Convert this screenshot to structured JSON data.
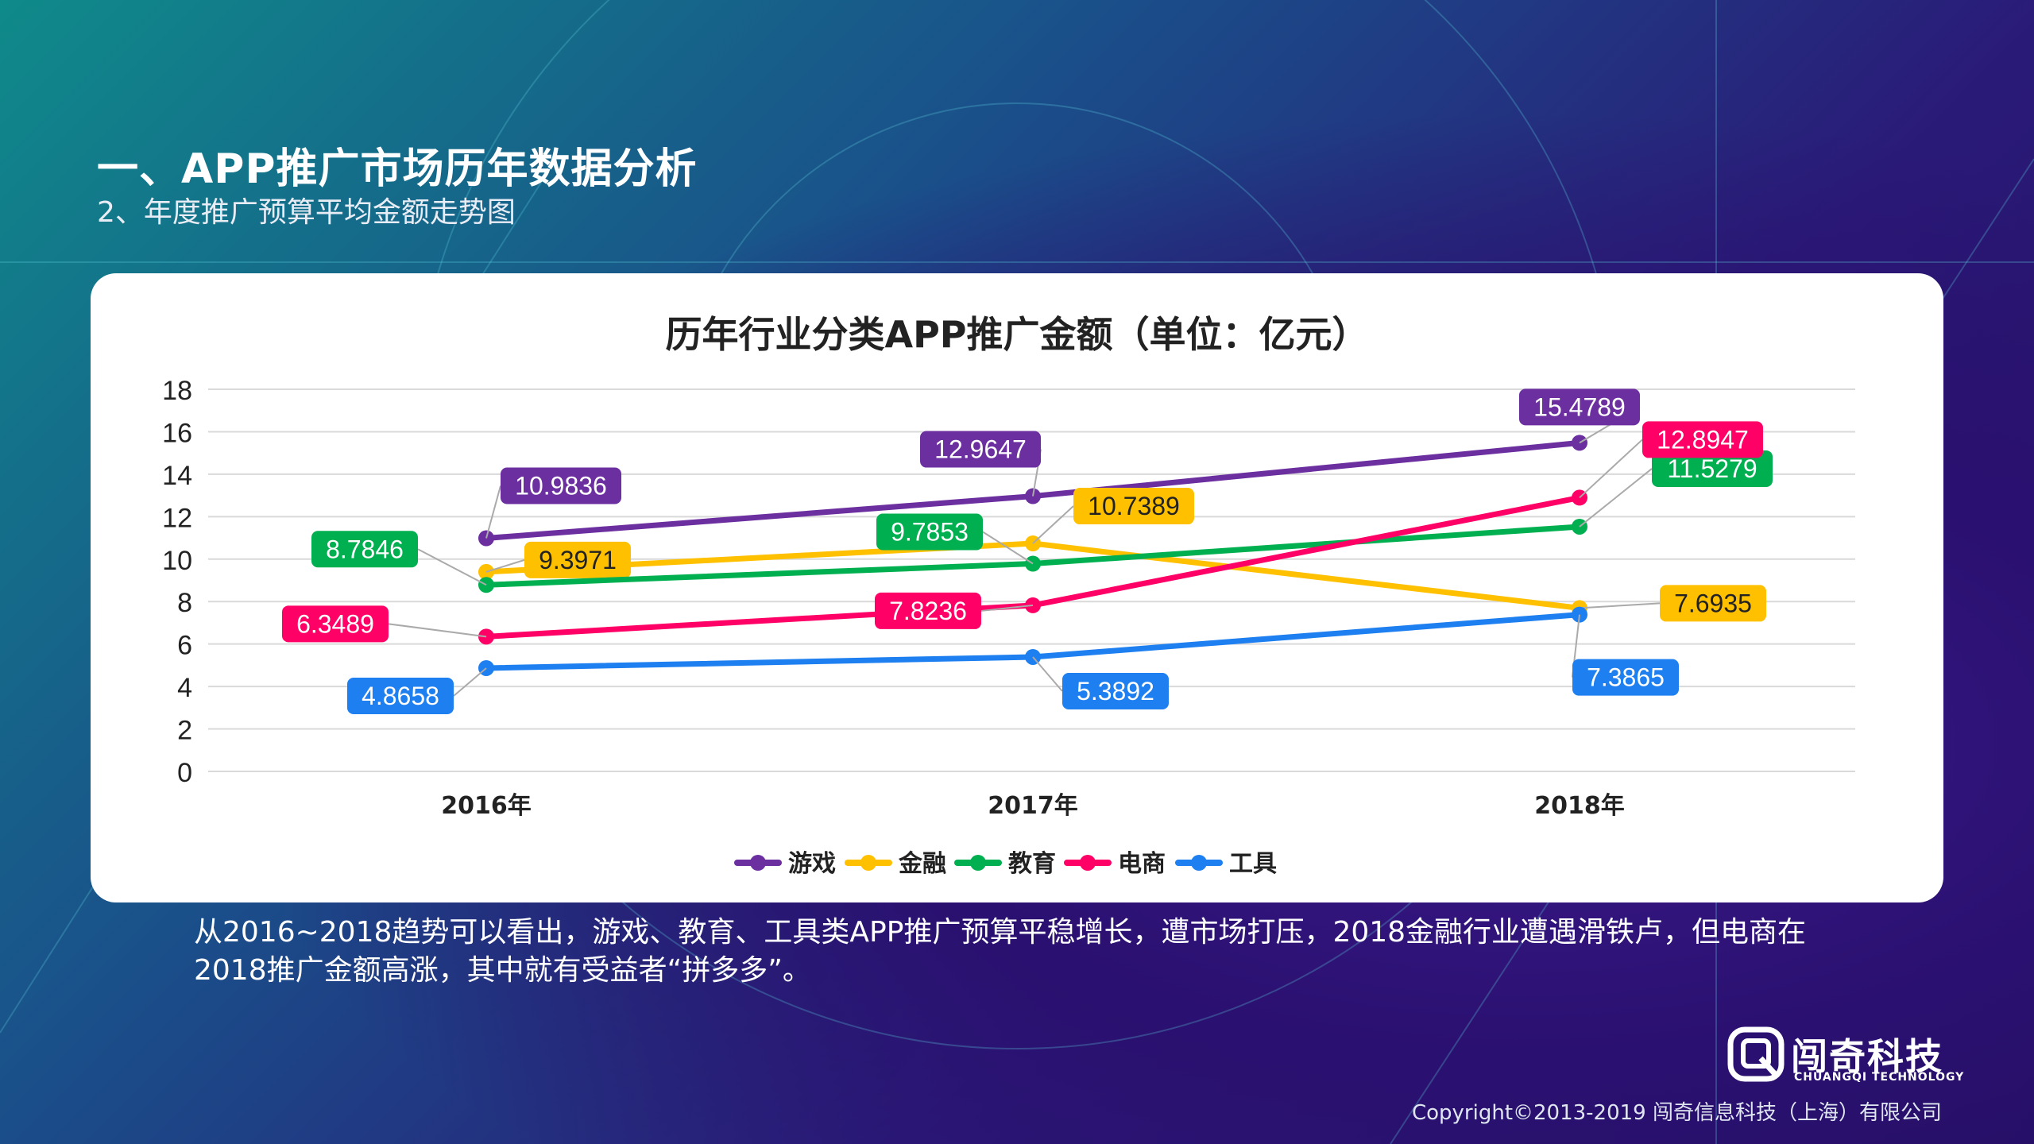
{
  "header": {
    "title": "一、APP推广市场历年数据分析",
    "subtitle": "2、年度推广预算平均金额走势图"
  },
  "chart_data": {
    "type": "line",
    "title": "历年行业分类APP推广金额（单位：亿元）",
    "categories": [
      "2016年",
      "2017年",
      "2018年"
    ],
    "ylim": [
      0,
      18
    ],
    "yticks": [
      0,
      2,
      4,
      6,
      8,
      10,
      12,
      14,
      16,
      18
    ],
    "grid": true,
    "legend_position": "bottom",
    "series": [
      {
        "name": "游戏",
        "color": "#6b2fa0",
        "values": [
          10.9836,
          12.9647,
          15.4789
        ],
        "labels": [
          "10.9836",
          "12.9647",
          "15.4789"
        ]
      },
      {
        "name": "金融",
        "color": "#ffc000",
        "values": [
          9.3971,
          10.7389,
          7.6935
        ],
        "labels": [
          "9.3971",
          "10.7389",
          "7.6935"
        ]
      },
      {
        "name": "教育",
        "color": "#00b050",
        "values": [
          8.7846,
          9.7853,
          11.5279
        ],
        "labels": [
          "8.7846",
          "9.7853",
          "11.5279"
        ]
      },
      {
        "name": "电商",
        "color": "#ff0066",
        "values": [
          6.3489,
          7.8236,
          12.8947
        ],
        "labels": [
          "6.3489",
          "7.8236",
          "12.8947"
        ]
      },
      {
        "name": "工具",
        "color": "#1e7ff0",
        "values": [
          4.8658,
          5.3892,
          7.3865
        ],
        "labels": [
          "4.8658",
          "5.3892",
          "7.3865"
        ]
      }
    ]
  },
  "summary": "从2016~2018趋势可以看出，游戏、教育、工具类APP推广预算平稳增长，遭市场打压，2018金融行业遭遇滑铁卢，但电商在2018推广金额高涨，其中就有受益者“拼多多”。",
  "footer": {
    "logo_name": "闯奇科技",
    "logo_en": "CHUANGQI TECHNOLOGY",
    "copyright": "Copyright©2013-2019  闯奇信息科技（上海）有限公司"
  }
}
